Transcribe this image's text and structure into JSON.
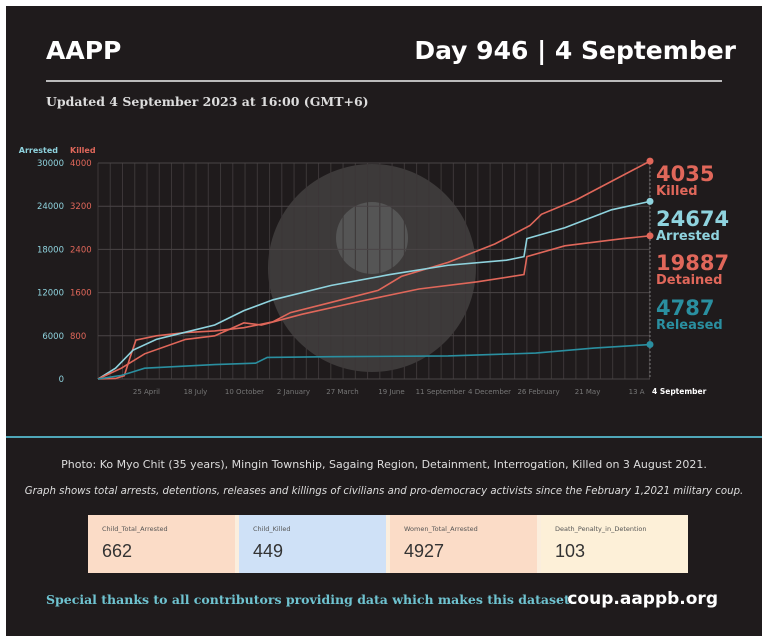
{
  "header": {
    "brand": "AAPP",
    "day": "Day 946 | 4 September",
    "updated": "Updated 4 September 2023 at 16:00 (GMT+6)"
  },
  "chart_data": {
    "type": "line",
    "axis_left_label": "Arrested",
    "axis_right_label": "Killed",
    "arrested_ticks": [
      "0",
      "6000",
      "12000",
      "18000",
      "24000",
      "30000"
    ],
    "killed_ticks": [
      "800",
      "1600",
      "2400",
      "3200",
      "4000"
    ],
    "arrested_range": [
      0,
      30000
    ],
    "killed_range": [
      0,
      4000
    ],
    "x_range_days": [
      0,
      946
    ],
    "x_ticks": [
      {
        "day": 83,
        "label": "25 April"
      },
      {
        "day": 167,
        "label": "18 July"
      },
      {
        "day": 251,
        "label": "10 October"
      },
      {
        "day": 335,
        "label": "2 January"
      },
      {
        "day": 419,
        "label": "27 March"
      },
      {
        "day": 503,
        "label": "19 June"
      },
      {
        "day": 587,
        "label": "11 September"
      },
      {
        "day": 671,
        "label": "4 December"
      },
      {
        "day": 755,
        "label": "26 February"
      },
      {
        "day": 839,
        "label": "21 May"
      },
      {
        "day": 923,
        "label": "13 A"
      },
      {
        "day": 946,
        "label": "4 September"
      }
    ],
    "series": [
      {
        "name": "Killed",
        "final": "4035",
        "scale": "killed",
        "color": "#e0675a",
        "points": [
          [
            0,
            0
          ],
          [
            30,
            10
          ],
          [
            45,
            60
          ],
          [
            55,
            400
          ],
          [
            65,
            720
          ],
          [
            100,
            800
          ],
          [
            150,
            860
          ],
          [
            200,
            890
          ],
          [
            250,
            950
          ],
          [
            300,
            1060
          ],
          [
            330,
            1230
          ],
          [
            400,
            1420
          ],
          [
            480,
            1640
          ],
          [
            520,
            1900
          ],
          [
            600,
            2160
          ],
          [
            680,
            2500
          ],
          [
            740,
            2840
          ],
          [
            760,
            3050
          ],
          [
            820,
            3320
          ],
          [
            946,
            4035
          ]
        ]
      },
      {
        "name": "Arrested",
        "final": "24674",
        "scale": "arrested",
        "color": "#8fd3de",
        "points": [
          [
            0,
            0
          ],
          [
            30,
            1500
          ],
          [
            60,
            4000
          ],
          [
            100,
            5500
          ],
          [
            150,
            6500
          ],
          [
            200,
            7500
          ],
          [
            250,
            9500
          ],
          [
            300,
            11000
          ],
          [
            400,
            13000
          ],
          [
            500,
            14500
          ],
          [
            600,
            15800
          ],
          [
            700,
            16500
          ],
          [
            730,
            17000
          ],
          [
            735,
            19500
          ],
          [
            800,
            21000
          ],
          [
            880,
            23500
          ],
          [
            946,
            24674
          ]
        ]
      },
      {
        "name": "Detained",
        "final": "19887",
        "scale": "arrested",
        "color": "#e0675a",
        "points": [
          [
            0,
            0
          ],
          [
            40,
            1500
          ],
          [
            80,
            3500
          ],
          [
            150,
            5500
          ],
          [
            200,
            6000
          ],
          [
            250,
            7800
          ],
          [
            280,
            7500
          ],
          [
            350,
            9000
          ],
          [
            450,
            10800
          ],
          [
            550,
            12500
          ],
          [
            650,
            13500
          ],
          [
            730,
            14500
          ],
          [
            735,
            17000
          ],
          [
            800,
            18500
          ],
          [
            900,
            19500
          ],
          [
            946,
            19887
          ]
        ]
      },
      {
        "name": "Released",
        "final": "4787",
        "scale": "arrested",
        "color": "#2a8fa0",
        "points": [
          [
            0,
            0
          ],
          [
            40,
            500
          ],
          [
            80,
            1500
          ],
          [
            200,
            2000
          ],
          [
            270,
            2200
          ],
          [
            290,
            3000
          ],
          [
            400,
            3100
          ],
          [
            600,
            3200
          ],
          [
            750,
            3600
          ],
          [
            850,
            4300
          ],
          [
            946,
            4787
          ]
        ]
      }
    ]
  },
  "footer": {
    "photo_caption": "Photo: Ko Myo Chit (35 years), Mingin Township, Sagaing Region, Detainment, Interrogation, Killed on 3 August 2021.",
    "description": "Graph shows total arrests, detentions, releases and killings of civilians and pro-democracy activists since the February 1,2021 military coup.",
    "cards": [
      {
        "label": "Child_Total_Arrested",
        "value": "662",
        "color": "#fbdcc7"
      },
      {
        "label": "Child_Killed",
        "value": "449",
        "color": "#cfe1f7"
      },
      {
        "label": "Women_Total_Arrested",
        "value": "4927",
        "color": "#fbdcc7"
      },
      {
        "label": "Death_Penalty_in_Detention",
        "value": "103",
        "color": "#fdf0d8"
      }
    ],
    "thanks": "Special thanks to all contributors providing data which makes this dataset.",
    "site": "coup.aappb.org"
  }
}
